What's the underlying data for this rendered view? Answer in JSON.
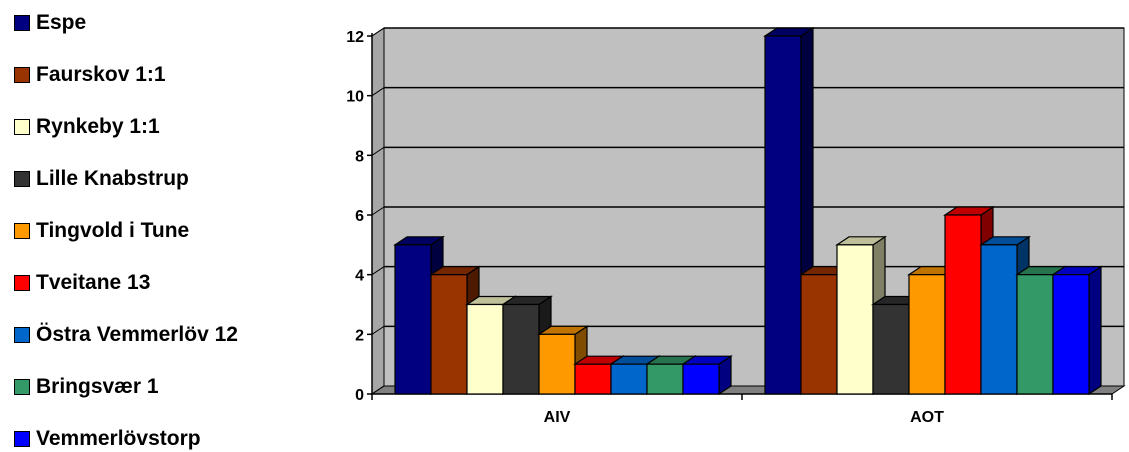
{
  "chart_data": {
    "type": "bar",
    "title": "",
    "xlabel": "",
    "ylabel": "",
    "categories": [
      "AIV",
      "AOT"
    ],
    "ylim": [
      0,
      12
    ],
    "yticks": [
      0,
      2,
      4,
      6,
      8,
      10,
      12
    ],
    "grid": true,
    "legend_position": "left",
    "series": [
      {
        "name": "Espe",
        "color": "#000080",
        "values": [
          5,
          12
        ]
      },
      {
        "name": "Faurskov 1:1",
        "color": "#993300",
        "values": [
          4,
          4
        ]
      },
      {
        "name": "Rynkeby 1:1",
        "color": "#FFFFCC",
        "values": [
          3,
          5
        ]
      },
      {
        "name": "Lille Knabstrup",
        "color": "#333333",
        "values": [
          3,
          3
        ]
      },
      {
        "name": "Tingvold i Tune",
        "color": "#FF9900",
        "values": [
          2,
          4
        ]
      },
      {
        "name": "Tveitane 13",
        "color": "#FF0000",
        "values": [
          1,
          6
        ]
      },
      {
        "name": "Östra Vemmerlöv 12",
        "color": "#0066CC",
        "values": [
          1,
          5
        ]
      },
      {
        "name": "Bringsvær 1",
        "color": "#339966",
        "values": [
          1,
          4
        ]
      },
      {
        "name": "Vemmerlövstorp",
        "color": "#0000FF",
        "values": [
          1,
          4
        ]
      }
    ]
  }
}
